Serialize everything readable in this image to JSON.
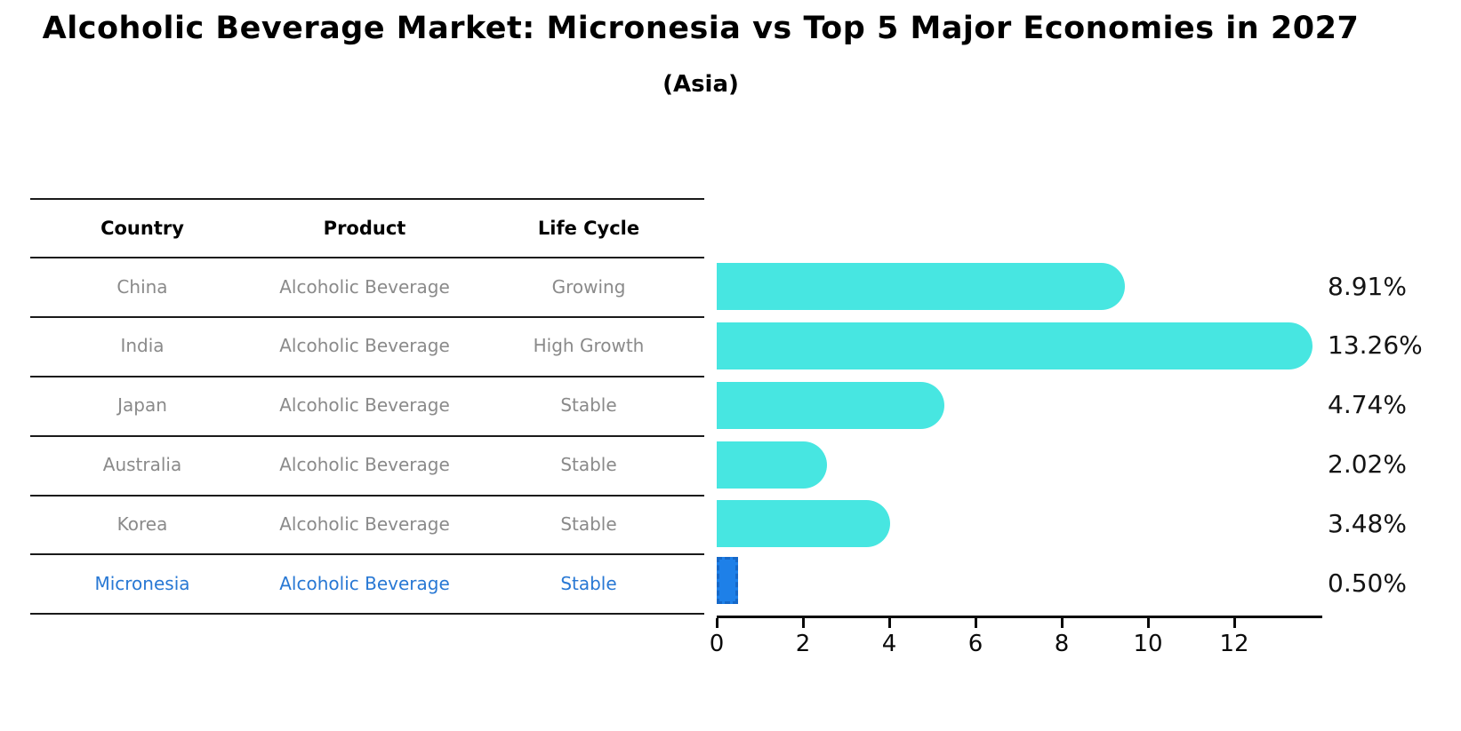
{
  "title": "Alcoholic Beverage Market: Micronesia vs Top 5 Major Economies in 2027",
  "subtitle": "(Asia)",
  "table": {
    "columns": [
      "Country",
      "Product",
      "Life Cycle"
    ],
    "rows": [
      {
        "country": "China",
        "product": "Alcoholic Beverage",
        "life_cycle": "Growing",
        "highlight": false
      },
      {
        "country": "India",
        "product": "Alcoholic Beverage",
        "life_cycle": "High Growth",
        "highlight": false
      },
      {
        "country": "Japan",
        "product": "Alcoholic Beverage",
        "life_cycle": "Stable",
        "highlight": false
      },
      {
        "country": "Australia",
        "product": "Alcoholic Beverage",
        "life_cycle": "Stable",
        "highlight": false
      },
      {
        "country": "Korea",
        "product": "Alcoholic Beverage",
        "life_cycle": "Stable",
        "highlight": false
      },
      {
        "country": "Micronesia",
        "product": "Alcoholic Beverage",
        "life_cycle": "Stable",
        "highlight": true
      }
    ]
  },
  "chart_data": {
    "type": "bar",
    "orientation": "horizontal",
    "title": "Alcoholic Beverage Market: Micronesia vs Top 5 Major Economies in 2027",
    "subtitle": "(Asia)",
    "categories": [
      "China",
      "India",
      "Japan",
      "Australia",
      "Korea",
      "Micronesia"
    ],
    "values": [
      8.91,
      13.26,
      4.74,
      2.02,
      3.48,
      0.5
    ],
    "value_labels": [
      "8.91%",
      "13.26%",
      "4.74%",
      "2.02%",
      "3.48%",
      "0.50%"
    ],
    "xlabel": "",
    "ylabel": "",
    "xticks": [
      0,
      2,
      4,
      6,
      8,
      10,
      12
    ],
    "xlim": [
      0,
      14
    ],
    "grid": false,
    "legend": false,
    "bar_color": "#47e6e1",
    "highlight_color": "#1e80e8",
    "highlight_index": 5
  },
  "colors": {
    "bar": "#47e6e1",
    "highlight_bar": "#1e80e8",
    "highlight_text": "#2878d4",
    "row_text": "#8a8a8a",
    "table_line": "#1a1a1a",
    "axis": "#0a0a0a"
  }
}
